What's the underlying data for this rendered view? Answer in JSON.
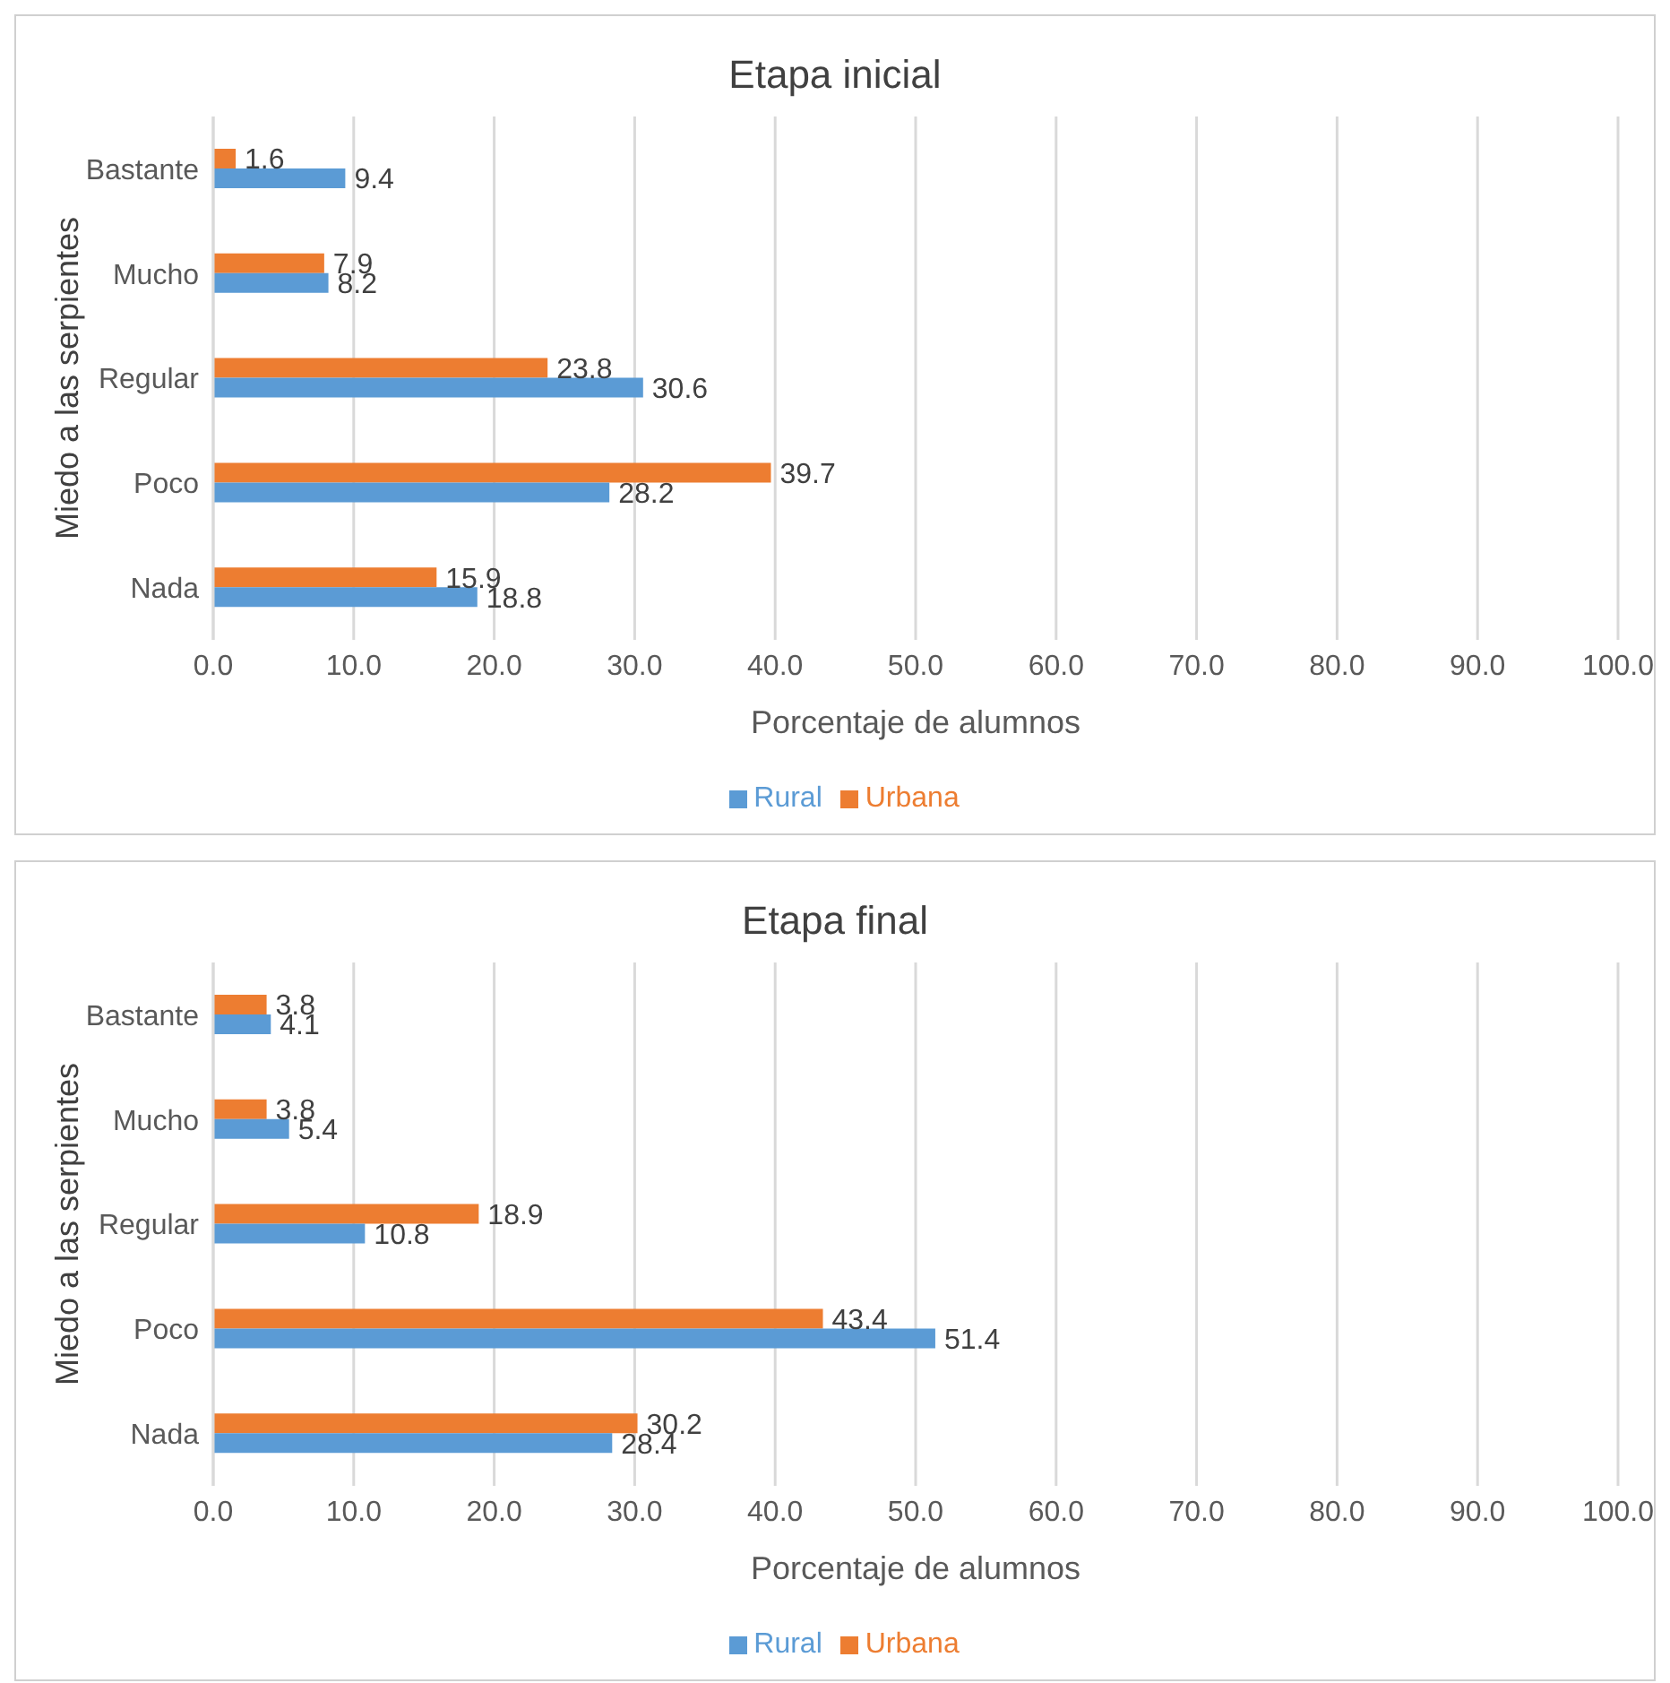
{
  "chart_data": [
    {
      "type": "bar",
      "orientation": "horizontal",
      "title": "Etapa inicial",
      "xlabel": "Porcentaje de alumnos",
      "ylabel": "Miedo a las serpientes",
      "categories": [
        "Bastante",
        "Mucho",
        "Regular",
        "Poco",
        "Nada"
      ],
      "series": [
        {
          "name": "Urbana",
          "color": "#ed7d31",
          "values": [
            1.6,
            7.9,
            23.8,
            39.7,
            15.9
          ]
        },
        {
          "name": "Rural",
          "color": "#5b9bd5",
          "values": [
            9.4,
            8.2,
            30.6,
            28.2,
            18.8
          ]
        }
      ],
      "xlim": [
        0,
        100
      ],
      "xticks": [
        {
          "value": 0,
          "label": "0.0"
        },
        {
          "value": 10,
          "label": "10.0"
        },
        {
          "value": 20,
          "label": "20.0"
        },
        {
          "value": 30,
          "label": "30.0"
        },
        {
          "value": 40,
          "label": "40.0"
        },
        {
          "value": 50,
          "label": "50.0"
        },
        {
          "value": 60,
          "label": "60.0"
        },
        {
          "value": 70,
          "label": "70.0"
        },
        {
          "value": 80,
          "label": "80.0"
        },
        {
          "value": 90,
          "label": "90.0"
        },
        {
          "value": 100,
          "label": "100.0"
        }
      ],
      "grid": "x",
      "legend": "bottom",
      "data_labels": true
    },
    {
      "type": "bar",
      "orientation": "horizontal",
      "title": "Etapa final",
      "xlabel": "Porcentaje de alumnos",
      "ylabel": "Miedo a las serpientes",
      "categories": [
        "Bastante",
        "Mucho",
        "Regular",
        "Poco",
        "Nada"
      ],
      "series": [
        {
          "name": "Urbana",
          "color": "#ed7d31",
          "values": [
            3.8,
            3.8,
            18.9,
            43.4,
            30.2
          ]
        },
        {
          "name": "Rural",
          "color": "#5b9bd5",
          "values": [
            4.1,
            5.4,
            10.8,
            51.4,
            28.4
          ]
        }
      ],
      "xlim": [
        0,
        100
      ],
      "xticks": [
        {
          "value": 0,
          "label": "0.0"
        },
        {
          "value": 10,
          "label": "10.0"
        },
        {
          "value": 20,
          "label": "20.0"
        },
        {
          "value": 30,
          "label": "30.0"
        },
        {
          "value": 40,
          "label": "40.0"
        },
        {
          "value": 50,
          "label": "50.0"
        },
        {
          "value": 60,
          "label": "60.0"
        },
        {
          "value": 70,
          "label": "70.0"
        },
        {
          "value": 80,
          "label": "80.0"
        },
        {
          "value": 90,
          "label": "90.0"
        },
        {
          "value": 100,
          "label": "100.0"
        }
      ],
      "grid": "x",
      "legend": "bottom",
      "data_labels": true
    }
  ]
}
